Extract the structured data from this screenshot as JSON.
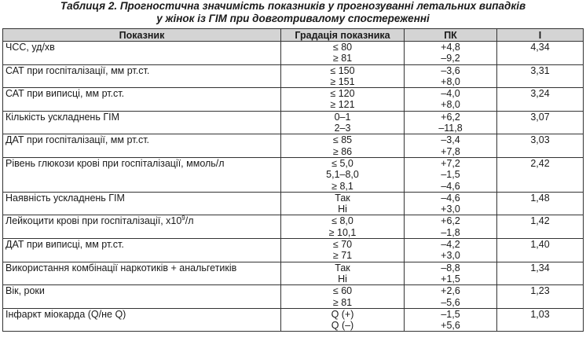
{
  "caption": {
    "line1": "Таблиця 2. Прогностична значимість показників у прогнозуванні летальних випадків",
    "line2": "у жінок із ГІМ при довготривалому спостереженні"
  },
  "headers": [
    "Показник",
    "Градація показника",
    "ПК",
    "I"
  ],
  "rows": [
    {
      "indicator": "ЧСС, уд/хв",
      "gradations": [
        "≤ 80",
        "≥ 81"
      ],
      "pk": [
        "+4,8",
        "–9,2"
      ],
      "i": "4,34"
    },
    {
      "indicator": "САТ при госпіталізації, мм рт.ст.",
      "gradations": [
        "≤ 150",
        "≥ 151"
      ],
      "pk": [
        "–3,6",
        "+8,0"
      ],
      "i": "3,31"
    },
    {
      "indicator": "САТ при виписці, мм рт.ст.",
      "gradations": [
        "≤ 120",
        "≥ 121"
      ],
      "pk": [
        "–4,0",
        "+8,0"
      ],
      "i": "3,24"
    },
    {
      "indicator": "Кількість ускладнень ГІМ",
      "gradations": [
        "0–1",
        "2–3"
      ],
      "pk": [
        "+6,2",
        "–11,8"
      ],
      "i": "3,07"
    },
    {
      "indicator": "ДАТ при госпіталізації, мм рт.ст.",
      "gradations": [
        "≤ 85",
        "≥ 86"
      ],
      "pk": [
        "–3,4",
        "+7,8"
      ],
      "i": "3,03"
    },
    {
      "indicator": "Рівень глюкози крові при госпіталізації, ммоль/л",
      "gradations": [
        "≤ 5,0",
        "5,1–8,0",
        "≥ 8,1"
      ],
      "pk": [
        "+7,2",
        "–1,5",
        "–4,6"
      ],
      "i": "2,42"
    },
    {
      "indicator": "Наявність ускладнень ГІМ",
      "gradations": [
        "Так",
        "Ні"
      ],
      "pk": [
        "–4,6",
        "+3,0"
      ],
      "i": "1,48"
    },
    {
      "indicator_pre": "Лейкоцити крові при госпіталізації, х10",
      "indicator_sup": "9",
      "indicator_post": "/л",
      "gradations": [
        "≤ 8,0",
        "≥ 10,1"
      ],
      "pk": [
        "+6,2",
        "–1,8"
      ],
      "i": "1,42"
    },
    {
      "indicator": "ДАТ при виписці, мм рт.ст.",
      "gradations": [
        "≤ 70",
        "≥ 71"
      ],
      "pk": [
        "–4,2",
        "+3,0"
      ],
      "i": "1,40"
    },
    {
      "indicator": "Використання комбінації наркотиків + анальгетиків",
      "gradations": [
        "Так",
        "Ні"
      ],
      "pk": [
        "–8,8",
        "+1,5"
      ],
      "i": "1,34"
    },
    {
      "indicator": "Вік, роки",
      "gradations": [
        "≤ 60",
        "≥ 81"
      ],
      "pk": [
        "+2,6",
        "–5,6"
      ],
      "i": "1,23"
    },
    {
      "indicator": "Інфаркт міокарда (Q/не Q)",
      "gradations": [
        "Q (+)",
        "Q (–)"
      ],
      "pk": [
        "–1,5",
        "+5,6"
      ],
      "i": "1,03"
    }
  ]
}
